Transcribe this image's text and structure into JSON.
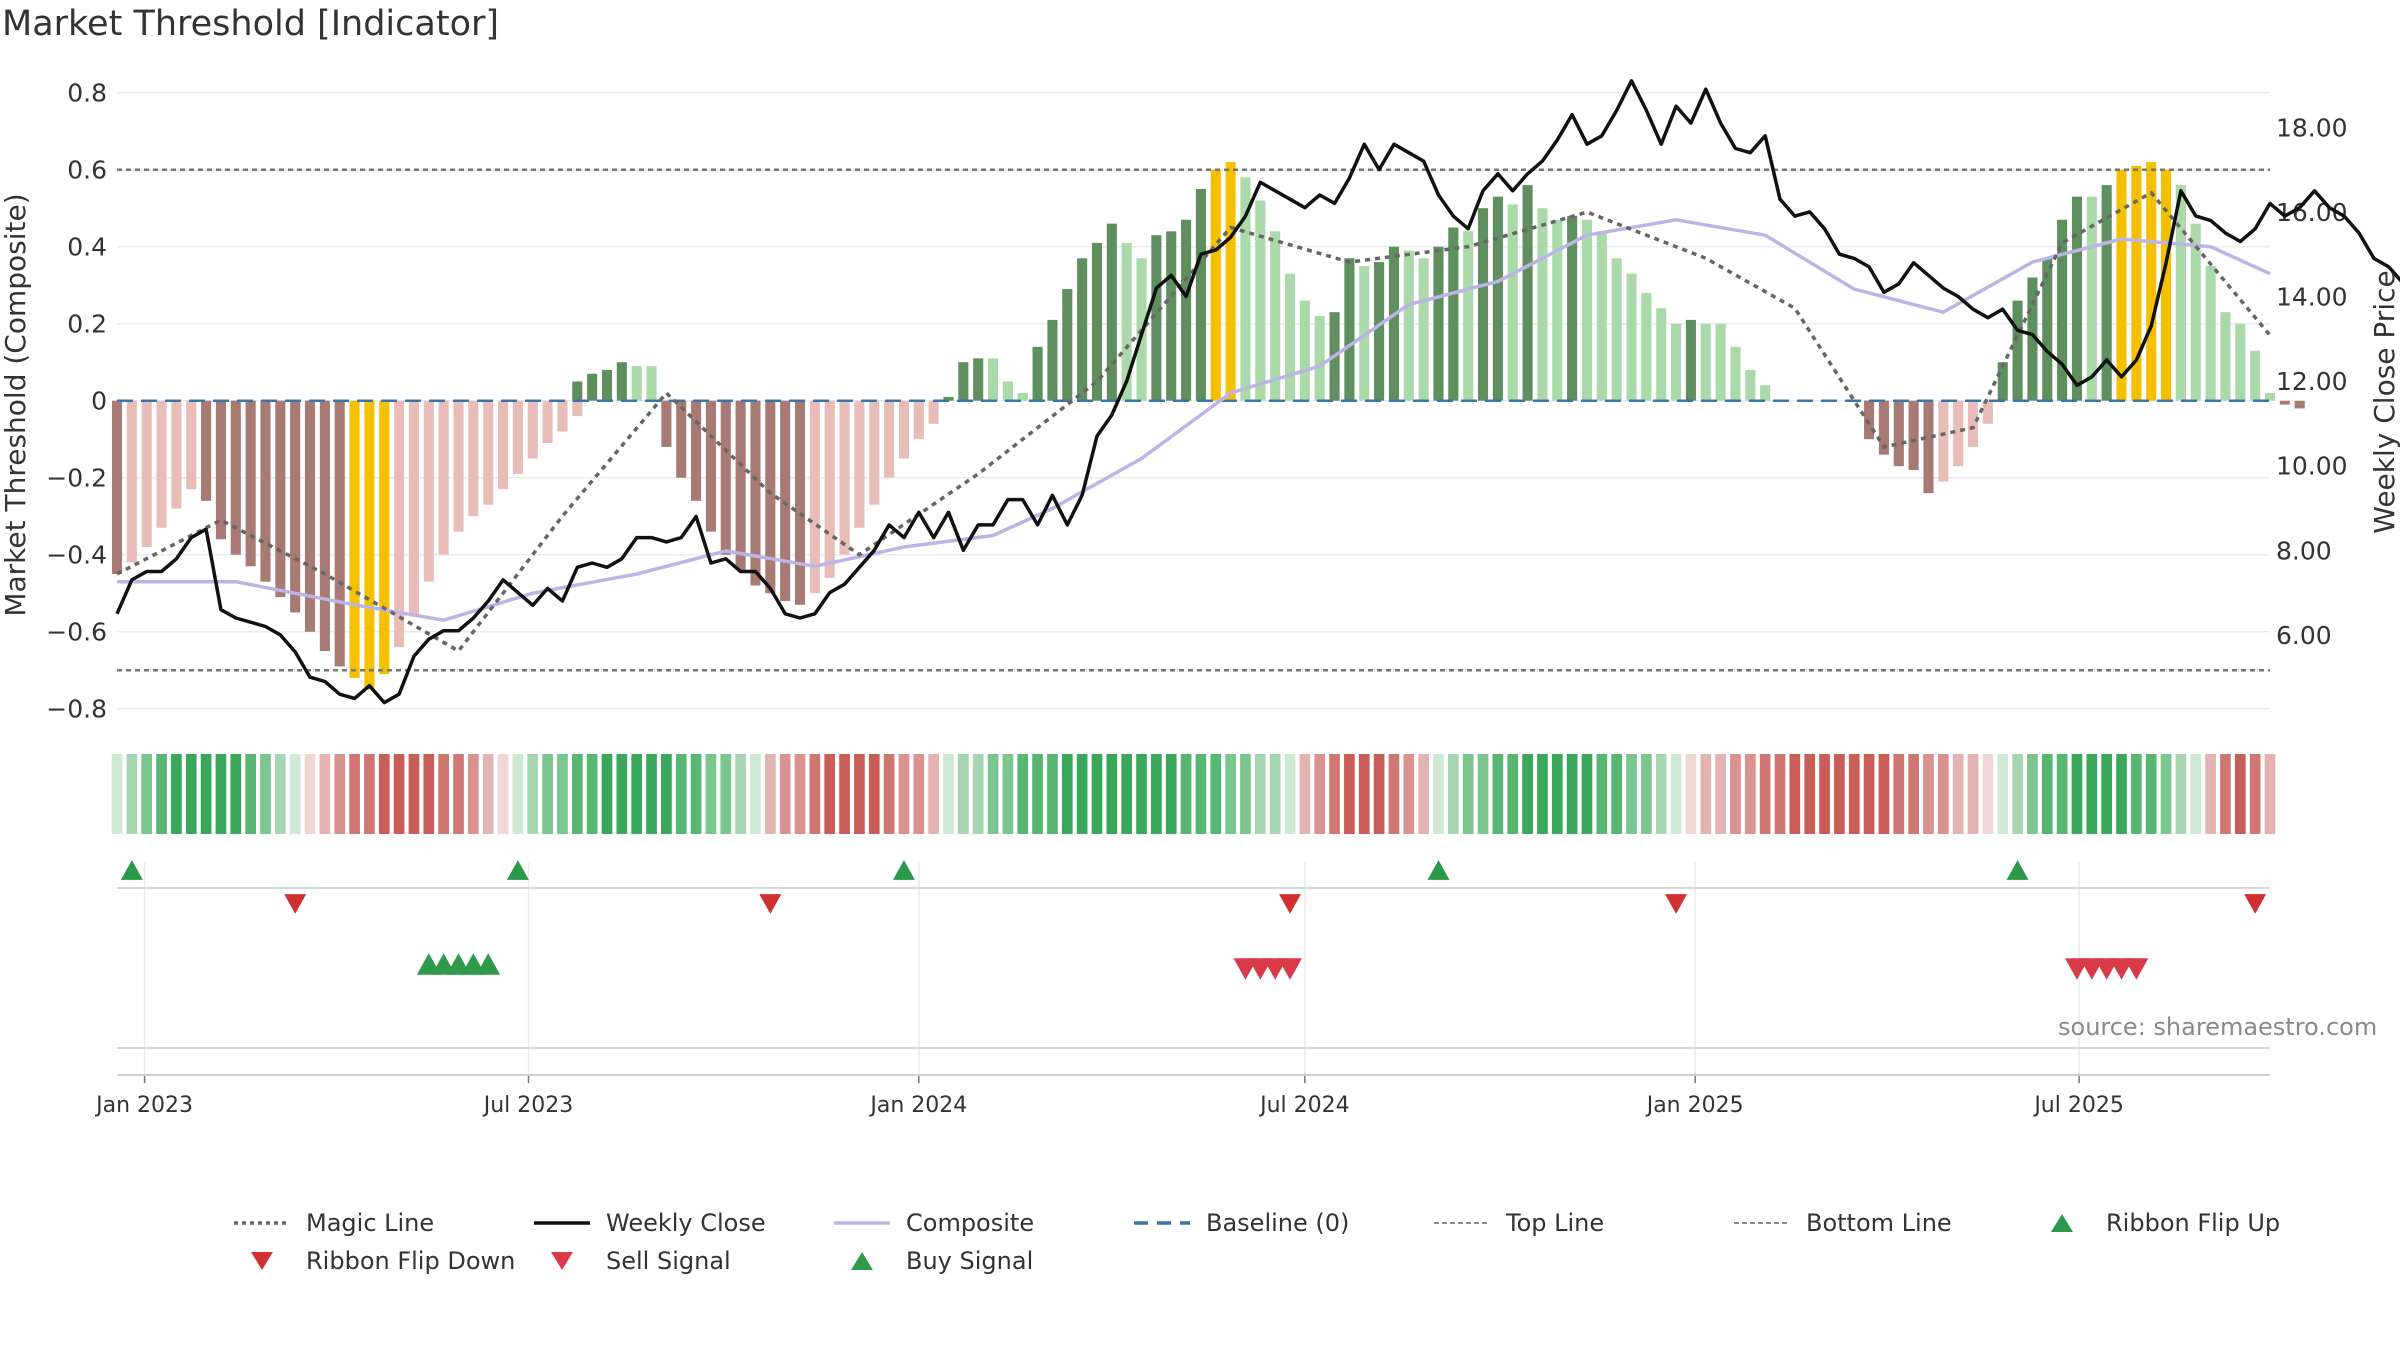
{
  "page": {
    "title": "Market Threshold [Indicator]",
    "source": "source: sharemaestro.com"
  },
  "colors": {
    "pos_strong": "#5f8f5f",
    "pos_light": "#acd9a9",
    "neg_strong": "#a77a74",
    "neg_light": "#e8bdb8",
    "extreme": "#f5c000",
    "close": "#111111",
    "composite": "#bcb4e4",
    "magic": "#666666",
    "baseline": "#3b74a8",
    "threshold": "#777777",
    "buy": "#2e9a4a",
    "sell": "#d93a48",
    "flip_up": "#2a9a48",
    "flip_down": "#d03030"
  },
  "chart_data": {
    "type": "bar",
    "title": "Market Threshold [Indicator]",
    "ylabel": "Market Threshold (Composite)",
    "y2label": "Weekly Close Price",
    "ylim": [
      -0.85,
      0.82
    ],
    "y2lim": [
      3.8,
      19.0
    ],
    "y_ticks": [
      -0.8,
      -0.6,
      -0.4,
      -0.2,
      0,
      0.2,
      0.4,
      0.6,
      0.8
    ],
    "y_tick_labels": [
      "−0.8",
      "−0.6",
      "−0.4",
      "−0.2",
      "0",
      "0.2",
      "0.4",
      "0.6",
      "0.8"
    ],
    "y2_ticks": [
      6,
      8,
      10,
      12,
      14,
      16,
      18
    ],
    "y2_tick_labels": [
      "6.00",
      "8.00",
      "10.00",
      "12.00",
      "14.00",
      "16.00",
      "18.00"
    ],
    "x_range": [
      "2022-12-19",
      "2025-09-29"
    ],
    "x_ticks": [
      "2023-01-01",
      "2023-07-01",
      "2024-01-01",
      "2024-07-01",
      "2025-01-01",
      "2025-07-01"
    ],
    "x_tick_labels": [
      "Jan 2023",
      "Jul 2023",
      "Jan 2024",
      "Jul 2024",
      "Jan 2025",
      "Jul 2025"
    ],
    "start_date": "2022-12-19",
    "interval_days": 7,
    "top_line": 0.6,
    "bottom_line": -0.7,
    "baseline": 0,
    "bars": [
      {
        "start": "2022-12-19",
        "values": [
          -0.45,
          -0.42,
          -0.38,
          -0.33,
          -0.28,
          -0.23,
          -0.26,
          -0.36,
          -0.4,
          -0.43,
          -0.47,
          -0.51,
          -0.55,
          -0.6,
          -0.65,
          -0.69,
          -0.72,
          -0.75,
          -0.71,
          -0.64,
          -0.56,
          -0.47,
          -0.4,
          -0.34,
          -0.3,
          -0.27,
          -0.23,
          -0.19,
          -0.15,
          -0.11,
          -0.08,
          -0.04
        ]
      },
      {
        "start": "2023-07-24",
        "values": [
          0.05,
          0.07,
          0.08,
          0.1,
          0.09,
          0.09
        ]
      },
      {
        "start": "2023-09-04",
        "values": [
          -0.12,
          -0.2,
          -0.26,
          -0.34,
          -0.4,
          -0.44,
          -0.48,
          -0.5,
          -0.52,
          -0.53,
          -0.5,
          -0.46,
          -0.4,
          -0.33,
          -0.27,
          -0.2,
          -0.15,
          -0.1,
          -0.06
        ]
      },
      {
        "start": "2024-01-15",
        "values": [
          0.01,
          0.1,
          0.11,
          0.11,
          0.05,
          0.02,
          0.14,
          0.21,
          0.29,
          0.37,
          0.41,
          0.46,
          0.41,
          0.37,
          0.43,
          0.44,
          0.47,
          0.55,
          0.6,
          0.62,
          0.58,
          0.52,
          0.44,
          0.33,
          0.26,
          0.22,
          0.23,
          0.37,
          0.35,
          0.36,
          0.4,
          0.39,
          0.37,
          0.4,
          0.45,
          0.44,
          0.5,
          0.53,
          0.51,
          0.56,
          0.5,
          0.47,
          0.48,
          0.47,
          0.44,
          0.37,
          0.33,
          0.28,
          0.24,
          0.2,
          0.21,
          0.2,
          0.2,
          0.14,
          0.08,
          0.04
        ]
      },
      {
        "start": "2025-03-24",
        "values": [
          -0.1,
          -0.14,
          -0.17,
          -0.18,
          -0.24,
          -0.21,
          -0.17,
          -0.12,
          -0.06
        ]
      },
      {
        "start": "2025-05-26",
        "values": [
          0.1,
          0.26,
          0.32,
          0.37,
          0.47,
          0.53,
          0.53,
          0.56,
          0.6,
          0.61,
          0.62,
          0.6,
          0.56,
          0.46,
          0.35,
          0.23,
          0.2,
          0.13,
          0.02,
          -0.01,
          -0.02
        ]
      }
    ],
    "weekly_close": [
      6.5,
      7.3,
      7.5,
      7.5,
      7.8,
      8.3,
      8.5,
      6.6,
      6.4,
      6.3,
      6.2,
      6.0,
      5.6,
      5.0,
      4.9,
      4.6,
      4.5,
      4.8,
      4.4,
      4.6,
      5.5,
      5.9,
      6.1,
      6.1,
      6.4,
      6.8,
      7.3,
      7.0,
      6.7,
      7.1,
      6.8,
      7.6,
      7.7,
      7.6,
      7.8,
      8.3,
      8.3,
      8.2,
      8.3,
      8.8,
      7.7,
      7.8,
      7.5,
      7.5,
      7.1,
      6.5,
      6.4,
      6.5,
      7.0,
      7.2,
      7.6,
      8.0,
      8.6,
      8.3,
      8.9,
      8.3,
      8.9,
      8.0,
      8.6,
      8.6,
      9.2,
      9.2,
      8.6,
      9.3,
      8.6,
      9.3,
      10.7,
      11.2,
      12.0,
      13.1,
      14.2,
      14.5,
      14.0,
      15.0,
      15.1,
      15.4,
      15.9,
      16.7,
      16.5,
      16.3,
      16.1,
      16.4,
      16.2,
      16.8,
      17.6,
      17.0,
      17.6,
      17.4,
      17.2,
      16.4,
      15.9,
      15.6,
      16.5,
      16.9,
      16.5,
      16.9,
      17.2,
      17.7,
      18.3,
      17.6,
      17.8,
      18.4,
      19.1,
      18.4,
      17.6,
      18.5,
      18.1,
      18.9,
      18.1,
      17.5,
      17.4,
      17.8,
      16.3,
      15.9,
      16.0,
      15.6,
      15.0,
      14.9,
      14.7,
      14.1,
      14.3,
      14.8,
      14.5,
      14.2,
      14.0,
      13.7,
      13.5,
      13.7,
      13.2,
      13.1,
      12.7,
      12.4,
      11.9,
      12.1,
      12.5,
      12.1,
      12.5,
      13.3,
      14.8,
      16.5,
      15.9,
      15.8,
      15.5,
      15.3,
      15.6,
      16.2,
      15.9,
      16.1,
      16.5,
      16.1,
      15.9,
      15.5,
      14.9,
      14.7,
      14.3,
      14.3,
      14.2,
      13.9,
      13.4
    ],
    "composite": [
      {
        "x": "2022-12-19",
        "y": -0.47
      },
      {
        "x": "2023-02-13",
        "y": -0.47
      },
      {
        "x": "2023-04-10",
        "y": -0.53
      },
      {
        "x": "2023-05-22",
        "y": -0.57
      },
      {
        "x": "2023-07-03",
        "y": -0.5
      },
      {
        "x": "2023-08-21",
        "y": -0.45
      },
      {
        "x": "2023-10-02",
        "y": -0.39
      },
      {
        "x": "2023-11-13",
        "y": -0.43
      },
      {
        "x": "2023-12-25",
        "y": -0.38
      },
      {
        "x": "2024-02-05",
        "y": -0.35
      },
      {
        "x": "2024-03-04",
        "y": -0.28
      },
      {
        "x": "2024-04-15",
        "y": -0.15
      },
      {
        "x": "2024-05-27",
        "y": 0.02
      },
      {
        "x": "2024-07-08",
        "y": 0.09
      },
      {
        "x": "2024-08-19",
        "y": 0.25
      },
      {
        "x": "2024-09-30",
        "y": 0.31
      },
      {
        "x": "2024-11-11",
        "y": 0.43
      },
      {
        "x": "2024-12-23",
        "y": 0.47
      },
      {
        "x": "2025-02-03",
        "y": 0.43
      },
      {
        "x": "2025-03-17",
        "y": 0.29
      },
      {
        "x": "2025-04-28",
        "y": 0.23
      },
      {
        "x": "2025-06-09",
        "y": 0.36
      },
      {
        "x": "2025-07-21",
        "y": 0.42
      },
      {
        "x": "2025-09-01",
        "y": 0.4
      },
      {
        "x": "2025-09-29",
        "y": 0.33
      }
    ],
    "magic_line": [
      {
        "x": "2022-12-19",
        "y": -0.45
      },
      {
        "x": "2023-02-06",
        "y": -0.31
      },
      {
        "x": "2023-03-27",
        "y": -0.45
      },
      {
        "x": "2023-05-29",
        "y": -0.65
      },
      {
        "x": "2023-07-17",
        "y": -0.3
      },
      {
        "x": "2023-09-04",
        "y": 0.02
      },
      {
        "x": "2023-10-23",
        "y": -0.24
      },
      {
        "x": "2023-12-04",
        "y": -0.4
      },
      {
        "x": "2024-01-29",
        "y": -0.19
      },
      {
        "x": "2024-03-25",
        "y": 0.05
      },
      {
        "x": "2024-05-27",
        "y": 0.45
      },
      {
        "x": "2024-07-22",
        "y": 0.36
      },
      {
        "x": "2024-09-16",
        "y": 0.4
      },
      {
        "x": "2024-11-11",
        "y": 0.49
      },
      {
        "x": "2025-01-06",
        "y": 0.37
      },
      {
        "x": "2025-02-17",
        "y": 0.24
      },
      {
        "x": "2025-03-31",
        "y": -0.12
      },
      {
        "x": "2025-05-12",
        "y": -0.07
      },
      {
        "x": "2025-06-23",
        "y": 0.41
      },
      {
        "x": "2025-08-04",
        "y": 0.54
      },
      {
        "x": "2025-09-29",
        "y": 0.17
      }
    ],
    "ribbon": [
      {
        "from": "2022-12-19",
        "to": "2023-03-13",
        "dir": "up"
      },
      {
        "from": "2023-03-20",
        "to": "2023-06-19",
        "dir": "down"
      },
      {
        "from": "2023-06-26",
        "to": "2023-10-16",
        "dir": "up"
      },
      {
        "from": "2023-10-23",
        "to": "2024-01-08",
        "dir": "down"
      },
      {
        "from": "2024-01-15",
        "to": "2024-06-24",
        "dir": "up"
      },
      {
        "from": "2024-07-01",
        "to": "2024-08-26",
        "dir": "down"
      },
      {
        "from": "2024-09-02",
        "to": "2024-12-23",
        "dir": "up"
      },
      {
        "from": "2024-12-30",
        "to": "2025-05-19",
        "dir": "down"
      },
      {
        "from": "2025-05-26",
        "to": "2025-08-25",
        "dir": "up"
      },
      {
        "from": "2025-09-01",
        "to": "2025-09-29",
        "dir": "down"
      }
    ],
    "ribbon_flip_up": [
      "2022-12-26",
      "2023-06-26",
      "2023-12-25",
      "2024-09-02",
      "2025-06-02"
    ],
    "ribbon_flip_down": [
      "2023-03-13",
      "2023-10-23",
      "2024-06-24",
      "2024-12-23",
      "2025-09-22"
    ],
    "buy_signal": [
      "2023-05-15",
      "2023-05-22",
      "2023-05-29",
      "2023-06-05",
      "2023-06-12"
    ],
    "sell_signal": [
      "2024-06-03",
      "2024-06-10",
      "2024-06-17",
      "2024-06-24",
      "2025-06-30",
      "2025-07-07",
      "2025-07-14",
      "2025-07-21",
      "2025-07-28"
    ]
  },
  "legend": [
    {
      "label": "Magic Line",
      "sym": "dotted",
      "color": "#666666"
    },
    {
      "label": "Weekly Close",
      "sym": "solid",
      "color": "#111111"
    },
    {
      "label": "Composite",
      "sym": "solid",
      "color": "#bcb4e4"
    },
    {
      "label": "Baseline (0)",
      "sym": "dashed",
      "color": "#3b74a8"
    },
    {
      "label": "Top Line",
      "sym": "fine-dash",
      "color": "#888888"
    },
    {
      "label": "Bottom Line",
      "sym": "fine-dash",
      "color": "#888888"
    },
    {
      "label": "Ribbon Flip Up",
      "sym": "tri-up",
      "color": "#2a9a48"
    },
    {
      "label": "Ribbon Flip Down",
      "sym": "tri-down",
      "color": "#d03030"
    },
    {
      "label": "Sell Signal",
      "sym": "tri-down",
      "color": "#d93a48"
    },
    {
      "label": "Buy Signal",
      "sym": "tri-up",
      "color": "#2e9a4a"
    }
  ]
}
